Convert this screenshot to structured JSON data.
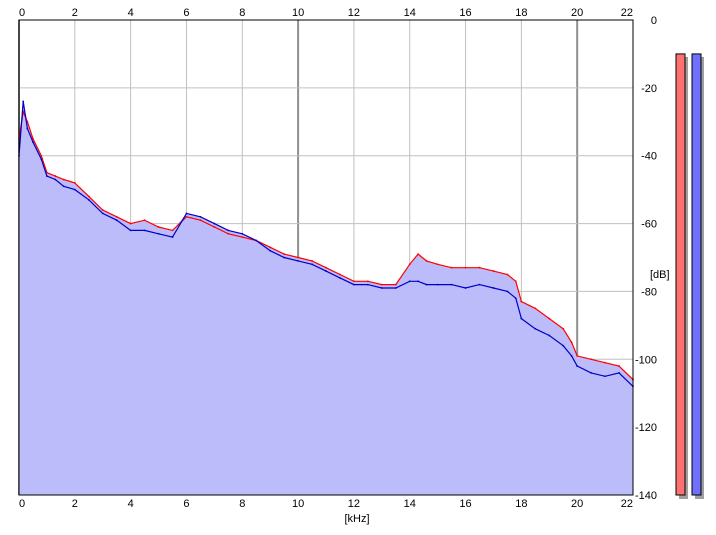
{
  "chart_data": {
    "type": "area",
    "x_unit": "[kHz]",
    "y_unit": "[dB]",
    "xlim": [
      0,
      22
    ],
    "ylim": [
      -140,
      0
    ],
    "x_ticks": [
      "0",
      "2",
      "4",
      "6",
      "8",
      "10",
      "12",
      "14",
      "16",
      "18",
      "20",
      "22"
    ],
    "y_ticks": [
      "0",
      "-20",
      "-40",
      "-60",
      "-80",
      "-100",
      "-120",
      "-140"
    ],
    "grid": true,
    "series": [
      {
        "color": "#ff0000",
        "x": [
          0,
          0.15,
          0.3,
          0.5,
          0.8,
          1.0,
          1.3,
          1.6,
          2.0,
          2.5,
          3.0,
          3.5,
          4.0,
          4.5,
          5.0,
          5.5,
          6.0,
          6.5,
          7.0,
          7.5,
          8.0,
          8.5,
          9.0,
          9.5,
          10.0,
          10.5,
          11.0,
          11.5,
          12.0,
          12.5,
          13.0,
          13.5,
          14.0,
          14.3,
          14.6,
          15.0,
          15.5,
          16.0,
          16.5,
          17.0,
          17.5,
          17.8,
          18.0,
          18.5,
          19.0,
          19.5,
          19.8,
          20.0,
          20.5,
          21.0,
          21.5,
          22.0
        ],
        "values": [
          -35,
          -27,
          -30,
          -35,
          -40,
          -45,
          -46,
          -47,
          -48,
          -52,
          -56,
          -58,
          -60,
          -59,
          -61,
          -62,
          -58,
          -59,
          -61,
          -63,
          -64,
          -65,
          -67,
          -69,
          -70,
          -71,
          -73,
          -75,
          -77,
          -77,
          -78,
          -78,
          -72,
          -69,
          -71,
          -72,
          -73,
          -73,
          -73,
          -74,
          -75,
          -77,
          -83,
          -85,
          -88,
          -91,
          -95,
          -99,
          -100,
          -101,
          -102,
          -106
        ]
      },
      {
        "color": "#0000c8",
        "x": [
          0,
          0.15,
          0.3,
          0.5,
          0.8,
          1.0,
          1.3,
          1.6,
          2.0,
          2.5,
          3.0,
          3.5,
          4.0,
          4.5,
          5.0,
          5.5,
          6.0,
          6.5,
          7.0,
          7.5,
          8.0,
          8.5,
          9.0,
          9.5,
          10.0,
          10.5,
          11.0,
          11.5,
          12.0,
          12.5,
          13.0,
          13.5,
          14.0,
          14.3,
          14.6,
          15.0,
          15.5,
          16.0,
          16.5,
          17.0,
          17.5,
          17.8,
          18.0,
          18.5,
          19.0,
          19.5,
          19.8,
          20.0,
          20.5,
          21.0,
          21.5,
          22.0
        ],
        "values": [
          -40,
          -24,
          -32,
          -36,
          -41,
          -46,
          -47,
          -49,
          -50,
          -53,
          -57,
          -59,
          -62,
          -62,
          -63,
          -64,
          -57,
          -58,
          -60,
          -62,
          -63,
          -65,
          -68,
          -70,
          -71,
          -72,
          -74,
          -76,
          -78,
          -78,
          -79,
          -79,
          -77,
          -77,
          -78,
          -78,
          -78,
          -79,
          -78,
          -79,
          -80,
          -82,
          -88,
          -91,
          -93,
          -96,
          -99,
          -102,
          -104,
          -105,
          -104,
          -108
        ]
      }
    ],
    "level_meters": [
      {
        "color": "#ff7070",
        "value_db": -10
      },
      {
        "color": "#7070ff",
        "value_db": -10
      }
    ]
  }
}
